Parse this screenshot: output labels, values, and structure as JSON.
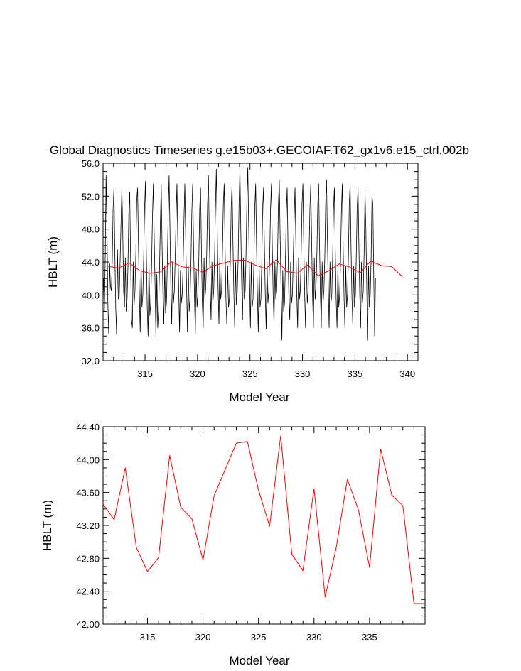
{
  "chart_data": [
    {
      "type": "line",
      "title": "Global Diagnostics Timeseries g.e15b03+.GECOIAF.T62_gx1v6.e15_ctrl.002b",
      "xlabel": "Model Year",
      "ylabel": "HBLT (m)",
      "xlim": [
        311.0,
        341.0
      ],
      "ylim": [
        32.0,
        56.0
      ],
      "x_ticks": [
        315,
        320,
        325,
        330,
        335,
        340
      ],
      "x_tick_labels": [
        "315",
        "320",
        "325",
        "330",
        "335",
        "340"
      ],
      "y_ticks": [
        32,
        36,
        40,
        44,
        48,
        52,
        56
      ],
      "y_tick_labels": [
        "32.0",
        "36.0",
        "40.0",
        "44.0",
        "48.0",
        "52.0",
        "56.0"
      ],
      "series": [
        {
          "color": "#000000",
          "x_start": 311.04,
          "x_step": 0.08333,
          "values": [
            42.0,
            38.0,
            44.5,
            54.5,
            48.0,
            39.0,
            35.3,
            43.8,
            41.0,
            40.5,
            44.0,
            50.5,
            53.0,
            45.0,
            38.5,
            35.2,
            45.5,
            39.5,
            39.8,
            44.0,
            48.5,
            53.0,
            48.0,
            40.5,
            38.5,
            44.5,
            38.0,
            39.5,
            43.5,
            50.0,
            52.5,
            44.5,
            37.0,
            36.0,
            44.0,
            38.8,
            40.5,
            45.0,
            51.5,
            53.0,
            46.0,
            40.0,
            35.5,
            43.8,
            38.5,
            40.0,
            44.8,
            50.5,
            53.8,
            45.0,
            38.5,
            35.0,
            44.0,
            37.5,
            39.0,
            43.5,
            49.5,
            53.5,
            47.0,
            41.0,
            34.5,
            42.5,
            36.0,
            38.0,
            43.0,
            48.5,
            53.5,
            46.0,
            40.0,
            36.5,
            43.5,
            37.8,
            39.0,
            44.0,
            50.0,
            54.5,
            48.0,
            41.0,
            36.5,
            44.0,
            39.0,
            40.5,
            44.5,
            49.5,
            53.5,
            46.5,
            40.5,
            35.5,
            43.0,
            39.0,
            40.0,
            43.5,
            49.0,
            53.5,
            47.0,
            41.0,
            35.5,
            43.5,
            38.0,
            39.5,
            44.0,
            50.0,
            53.5,
            46.0,
            40.0,
            35.3,
            43.0,
            38.5,
            40.0,
            44.5,
            50.5,
            53.0,
            45.5,
            39.0,
            36.0,
            44.5,
            39.5,
            41.0,
            45.0,
            51.0,
            54.5,
            47.0,
            41.0,
            37.0,
            44.0,
            39.0,
            40.5,
            44.5,
            50.5,
            55.3,
            48.5,
            41.0,
            36.5,
            44.5,
            39.5,
            40.5,
            45.0,
            51.0,
            53.5,
            46.0,
            39.5,
            36.5,
            43.5,
            38.5,
            39.5,
            44.0,
            50.5,
            53.5,
            46.5,
            40.5,
            36.0,
            44.0,
            38.8,
            40.5,
            44.5,
            51.0,
            55.3,
            48.0,
            41.5,
            37.0,
            44.5,
            39.5,
            40.5,
            45.0,
            51.5,
            55.5,
            48.5,
            42.0,
            36.0,
            44.0,
            38.5,
            39.5,
            44.0,
            50.5,
            53.5,
            46.0,
            40.0,
            35.5,
            43.5,
            38.5,
            39.5,
            44.0,
            50.5,
            53.0,
            46.0,
            40.0,
            35.8,
            44.0,
            39.0,
            40.5,
            44.5,
            50.5,
            53.5,
            46.0,
            40.0,
            36.5,
            44.0,
            39.5,
            40.5,
            44.5,
            51.0,
            54.0,
            47.0,
            41.0,
            34.5,
            43.0,
            38.0,
            39.0,
            44.0,
            50.0,
            53.0,
            45.5,
            39.5,
            37.0,
            44.0,
            39.0,
            40.0,
            44.5,
            49.5,
            53.0,
            46.0,
            40.0,
            36.0,
            44.5,
            39.5,
            40.5,
            45.0,
            51.0,
            53.5,
            46.0,
            40.0,
            36.0,
            44.0,
            39.0,
            40.5,
            45.0,
            50.5,
            53.5,
            46.5,
            40.0,
            36.0,
            44.5,
            39.5,
            41.0,
            45.0,
            51.0,
            53.5,
            46.0,
            40.0,
            36.0,
            44.0,
            39.0,
            40.5,
            44.5,
            51.0,
            54.0,
            47.0,
            41.0,
            36.0,
            44.0,
            39.0,
            40.0,
            44.5,
            50.5,
            53.0,
            45.5,
            39.5,
            36.0,
            43.5,
            38.5,
            40.0,
            44.0,
            50.0,
            53.5,
            46.0,
            40.0,
            36.0,
            43.5,
            38.5,
            40.0,
            44.5,
            51.0,
            53.5,
            46.0,
            40.0,
            36.5,
            43.5,
            38.5,
            40.0,
            44.5,
            50.5,
            53.0,
            46.0,
            40.0,
            36.0,
            44.0,
            39.0,
            40.5,
            45.0,
            52.5,
            48.0,
            41.0,
            34.5,
            43.5,
            38.5,
            40.0,
            44.5,
            52.0,
            51.0,
            42.0,
            35.0,
            42.0
          ]
        },
        {
          "color": "#ff0000",
          "x": [
            311.5,
            312.5,
            313.5,
            314.5,
            315.5,
            316.5,
            317.5,
            318.5,
            319.5,
            320.5,
            321.5,
            322.5,
            323.5,
            324.5,
            325.5,
            326.5,
            327.5,
            328.5,
            329.5,
            330.5,
            331.5,
            332.5,
            333.5,
            334.5,
            335.5,
            336.5,
            337.5,
            338.5,
            339.5
          ],
          "values": [
            43.46,
            43.27,
            43.9,
            42.93,
            42.64,
            42.81,
            44.05,
            43.42,
            43.28,
            42.78,
            43.56,
            43.88,
            44.2,
            44.22,
            43.63,
            43.19,
            44.29,
            42.85,
            42.65,
            43.65,
            42.33,
            42.93,
            43.76,
            43.39,
            42.69,
            44.13,
            43.57,
            43.44,
            42.25
          ]
        }
      ]
    },
    {
      "type": "line",
      "title": "",
      "xlabel": "Model Year",
      "ylabel": "HBLT (m)",
      "xlim": [
        311.0,
        340.0
      ],
      "ylim": [
        42.0,
        44.4
      ],
      "x_ticks": [
        315,
        320,
        325,
        330,
        335
      ],
      "x_tick_labels": [
        "315",
        "320",
        "325",
        "330",
        "335"
      ],
      "y_ticks": [
        42.0,
        42.4,
        42.8,
        43.2,
        43.6,
        44.0,
        44.4
      ],
      "y_tick_labels": [
        "42.00",
        "42.40",
        "42.80",
        "43.20",
        "43.60",
        "44.00",
        "44.40"
      ],
      "series": [
        {
          "color": "#ff0000",
          "x": [
            311.0,
            312.0,
            313.0,
            314.0,
            315.0,
            316.0,
            317.0,
            318.0,
            319.0,
            320.0,
            321.0,
            322.0,
            323.0,
            324.0,
            325.0,
            326.0,
            327.0,
            328.0,
            329.0,
            330.0,
            331.0,
            332.0,
            333.0,
            334.0,
            335.0,
            336.0,
            337.0,
            338.0,
            339.0,
            340.0
          ],
          "values": [
            43.46,
            43.27,
            43.9,
            42.93,
            42.64,
            42.81,
            44.05,
            43.42,
            43.28,
            42.78,
            43.56,
            43.88,
            44.2,
            44.22,
            43.63,
            43.19,
            44.29,
            42.85,
            42.65,
            43.65,
            42.33,
            42.93,
            43.76,
            43.39,
            42.69,
            44.13,
            43.57,
            43.44,
            42.25,
            42.25
          ]
        }
      ]
    }
  ]
}
